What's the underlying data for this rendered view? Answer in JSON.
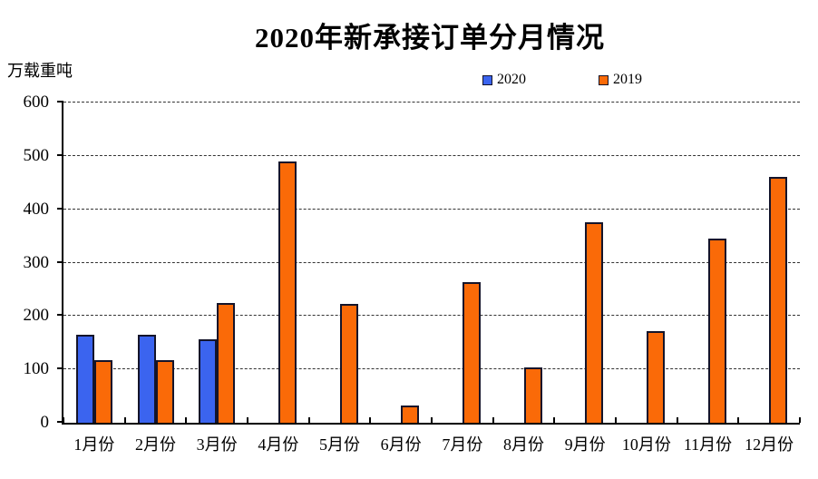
{
  "page": {
    "background": "#ffffff"
  },
  "chart_data": {
    "type": "bar",
    "title": "2020年新承接订单分月情况",
    "ylabel": "万载重吨",
    "xlabel": "",
    "categories": [
      "1月份",
      "2月份",
      "3月份",
      "4月份",
      "5月份",
      "6月份",
      "7月份",
      "8月份",
      "9月份",
      "10月份",
      "11月份",
      "12月份"
    ],
    "series": [
      {
        "name": "2020",
        "color": "#3b64ef",
        "values": [
          165,
          165,
          157,
          null,
          null,
          null,
          null,
          null,
          null,
          null,
          null,
          null
        ]
      },
      {
        "name": "2019",
        "color": "#fa6a08",
        "values": [
          118,
          118,
          225,
          490,
          223,
          32,
          263,
          103,
          375,
          172,
          345,
          460
        ]
      }
    ],
    "ylim": [
      0,
      600
    ],
    "ytick_step": 100,
    "y_ticks": [
      0,
      100,
      200,
      300,
      400,
      500,
      600
    ],
    "grid": "horizontal-dashed",
    "legend_position": "top",
    "bar_border_color": "#14142a",
    "axis_color": "#000000"
  }
}
